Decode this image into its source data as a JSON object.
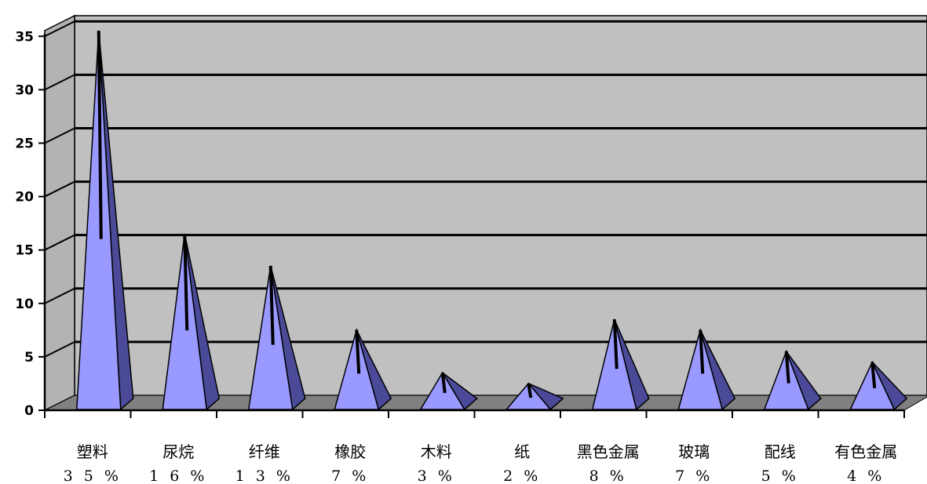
{
  "chart_data": {
    "type": "bar",
    "bar_shape": "pyramid-3d",
    "categories": [
      "塑料",
      "尿烷",
      "纤维",
      "橡胶",
      "木料",
      "纸",
      "黑色金属",
      "玻璃",
      "配线",
      "有色金属"
    ],
    "data_labels": [
      "3 5 %",
      "1 6 %",
      "1 3 %",
      "7 %",
      "3 %",
      "2 %",
      "8 %",
      "7 %",
      "5 %",
      "4 %"
    ],
    "values": [
      35,
      16,
      13,
      7,
      3,
      2,
      8,
      7,
      5,
      4
    ],
    "y_ticks": [
      "0",
      "5",
      "10",
      "15",
      "20",
      "25",
      "30",
      "35"
    ],
    "ylim": [
      0,
      35
    ],
    "grid": true,
    "legend": "none",
    "colors": {
      "bar_face": "#9999ff",
      "bar_side": "#4a4a99",
      "bar_outline": "#000000",
      "wall": "#c0c0c0",
      "floor": "#808080",
      "grid": "#000000"
    }
  }
}
